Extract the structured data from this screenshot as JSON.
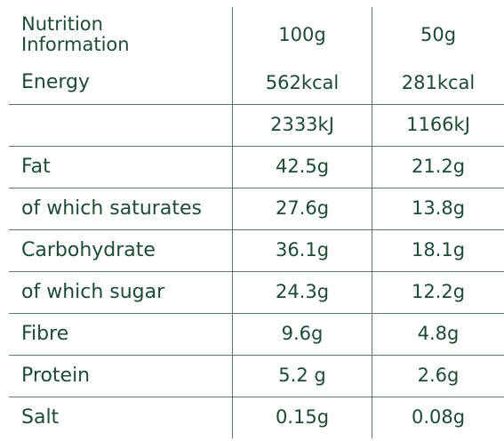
{
  "header": {
    "title_line1": "Nutrition",
    "title_line2": "Information",
    "col_100": "100g",
    "col_50": "50g"
  },
  "rows": [
    {
      "label": "Energy",
      "v100": "562kcal",
      "v50": "281kcal"
    },
    {
      "label": "",
      "v100": "2333kJ",
      "v50": "1166kJ"
    },
    {
      "label": "Fat",
      "v100": "42.5g",
      "v50": "21.2g"
    },
    {
      "label": "of which saturates",
      "v100": "27.6g",
      "v50": "13.8g"
    },
    {
      "label": "Carbohydrate",
      "v100": "36.1g",
      "v50": "18.1g"
    },
    {
      "label": "of which sugar",
      "v100": "24.3g",
      "v50": "12.2g"
    },
    {
      "label": "Fibre",
      "v100": "9.6g",
      "v50": "4.8g"
    },
    {
      "label": "Protein",
      "v100": "5.2 g",
      "v50": "2.6g"
    },
    {
      "label": "Salt",
      "v100": "0.15g",
      "v50": "0.08g"
    }
  ],
  "colors": {
    "text": "#1f4a33",
    "rule": "#5a7a66",
    "background": "#ffffff"
  }
}
